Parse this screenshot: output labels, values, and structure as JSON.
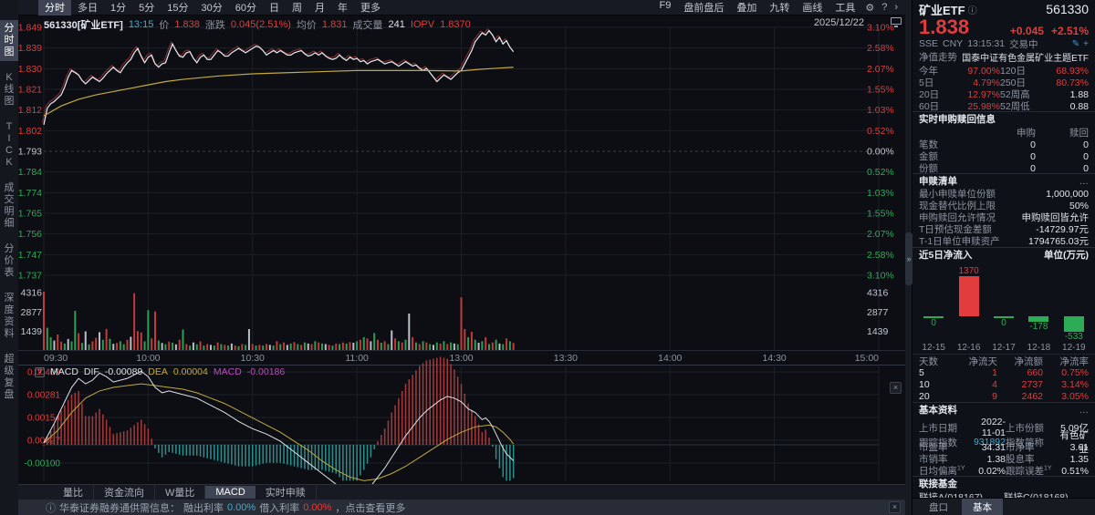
{
  "icons": {
    "gear": "⚙",
    "help": "?",
    "chevron": "›",
    "collapse": "»",
    "close": "×",
    "info": "ⓘ",
    "edit": "✎",
    "plus": "+"
  },
  "toolbar": {
    "left": [
      "分时",
      "多日",
      "1分",
      "5分",
      "15分",
      "30分",
      "60分",
      "日",
      "周",
      "月",
      "年",
      "更多"
    ],
    "active_left": "分时",
    "right": [
      "F9",
      "盘前盘后",
      "叠加",
      "九转",
      "画线",
      "工具"
    ],
    "date": "2025/12/22"
  },
  "sidebar": {
    "items": [
      "分时图",
      "K线图",
      "TICK",
      "成交明细",
      "分价表",
      "深度资料",
      "超级复盘"
    ],
    "active": "分时图"
  },
  "chart_header": {
    "symbol": "561330[矿业ETF]",
    "time": "13:15",
    "price_label": "价",
    "price": "1.838",
    "change_label": "涨跌",
    "change": "0.045(2.51%)",
    "avg_label": "均价",
    "avg": "1.831",
    "volume_label": "成交量",
    "volume": "241",
    "iopv_label": "IOPV",
    "iopv": "1.8370"
  },
  "chart_data": {
    "intraday": {
      "type": "line",
      "title": "分时",
      "prev_close": 1.793,
      "session_minutes": 240,
      "last_minute": 135,
      "x_ticks": [
        "09:30",
        "10:00",
        "10:30",
        "11:00",
        "13:00",
        "13:30",
        "14:00",
        "14:30",
        "15:00"
      ],
      "price_axis": [
        "1.849",
        "1.839",
        "1.830",
        "1.821",
        "1.812",
        "1.802",
        "1.793",
        "1.784",
        "1.774",
        "1.765",
        "1.756",
        "1.747",
        "1.737"
      ],
      "pct_axis": [
        "3.10%",
        "2.58%",
        "2.07%",
        "1.55%",
        "1.03%",
        "0.52%",
        "0.00%",
        "0.52%",
        "1.03%",
        "1.55%",
        "2.07%",
        "2.58%",
        "3.10%"
      ],
      "price_range": [
        1.737,
        1.849
      ],
      "price_points": [
        1.805,
        1.8125,
        1.8145,
        1.8155,
        1.817,
        1.8185,
        1.822,
        1.8265,
        1.8295,
        1.8285,
        1.8275,
        1.825,
        1.8235,
        1.825,
        1.8265,
        1.8255,
        1.8245,
        1.826,
        1.828,
        1.8295,
        1.831,
        1.8295,
        1.8285,
        1.831,
        1.833,
        1.8345,
        1.8375,
        1.8395,
        1.836,
        1.833,
        1.8355,
        1.8365,
        1.8325,
        1.831,
        1.8325,
        1.833,
        1.8375,
        1.8415,
        1.8385,
        1.836,
        1.8355,
        1.8375,
        1.838,
        1.835,
        1.833,
        1.8355,
        1.8365,
        1.8345,
        1.8345,
        1.8365,
        1.8385,
        1.8375,
        1.836,
        1.836,
        1.8375,
        1.8385,
        1.8395,
        1.8385,
        1.8375,
        1.8385,
        1.8395,
        1.8405,
        1.84,
        1.8385,
        1.8365,
        1.8375,
        1.8385,
        1.8375,
        1.8385,
        1.8375,
        1.8365,
        1.8365,
        1.8375,
        1.838,
        1.8385,
        1.837,
        1.836,
        1.8365,
        1.8375,
        1.8365,
        1.8375,
        1.836,
        1.835,
        1.8345,
        1.835,
        1.8365,
        1.835,
        1.834,
        1.8355,
        1.8345,
        1.835,
        1.8335,
        1.834,
        1.8325,
        1.8335,
        1.834,
        1.8345,
        1.8335,
        1.8325,
        1.833,
        1.8335,
        1.8325,
        1.8315,
        1.8325,
        1.8335,
        1.8325,
        1.8315,
        1.832,
        1.8305,
        1.8295,
        1.8305,
        1.8285,
        1.8265,
        1.8245,
        1.826,
        1.8275,
        1.8265,
        1.8255,
        1.827,
        1.8285,
        1.8295,
        1.8325,
        1.8355,
        1.8385,
        1.8425,
        1.8445,
        1.8465,
        1.8455,
        1.8475,
        1.8455,
        1.8425,
        1.8445,
        1.8415,
        1.843,
        1.84,
        1.838
      ],
      "avg_points": [
        [
          0,
          1.809
        ],
        [
          5,
          1.8135
        ],
        [
          10,
          1.8165
        ],
        [
          15,
          1.8185
        ],
        [
          20,
          1.82
        ],
        [
          25,
          1.8215
        ],
        [
          30,
          1.823
        ],
        [
          35,
          1.8245
        ],
        [
          40,
          1.8255
        ],
        [
          50,
          1.827
        ],
        [
          60,
          1.828
        ],
        [
          70,
          1.8285
        ],
        [
          80,
          1.829
        ],
        [
          90,
          1.8295
        ],
        [
          100,
          1.8295
        ],
        [
          110,
          1.8295
        ],
        [
          120,
          1.8293
        ],
        [
          125,
          1.83
        ],
        [
          130,
          1.8305
        ],
        [
          135,
          1.831
        ]
      ],
      "volume_axis": [
        "4316",
        "2877",
        "1439"
      ],
      "volume_max": 4316,
      "volumes": [
        4316,
        1650,
        950,
        700,
        1150,
        620,
        480,
        820,
        640,
        2900,
        1250,
        520,
        1380,
        420,
        640,
        900,
        1320,
        760,
        1560,
        830,
        460,
        520,
        650,
        430,
        760,
        980,
        4200,
        1400,
        1300,
        640,
        2950,
        860,
        2850,
        700,
        520,
        430,
        620,
        540,
        420,
        760,
        1520,
        440,
        330,
        560,
        420,
        640,
        330,
        440,
        380,
        330,
        560,
        440,
        380,
        330,
        480,
        330,
        280,
        440,
        380,
        1550,
        440,
        330,
        380,
        330,
        440,
        380,
        330,
        650,
        440,
        560,
        380,
        480,
        590,
        440,
        380,
        560,
        480,
        440,
        650,
        560,
        480,
        440,
        380,
        330,
        480,
        440,
        560,
        480,
        590,
        540,
        650,
        760,
        950,
        860,
        650,
        1250,
        760,
        540,
        650,
        440,
        1450,
        860,
        650,
        560,
        760,
        2700,
        950,
        560,
        440,
        650,
        560,
        440,
        380,
        560,
        480,
        650,
        440,
        560,
        480,
        430,
        3900,
        1550,
        950,
        1350,
        760,
        540,
        650,
        950,
        440,
        560,
        760,
        480,
        430,
        860,
        650,
        520
      ],
      "volume_colors": [
        "rggwrrgwgg",
        "rgwgrrwgrg",
        "wrggrwrrrg",
        "grrgwgrgwr",
        "grgwgrgrwg",
        "rgrgwrgrgw",
        "rgrgrwgrgr",
        "wgrgrgwrgr",
        "gwrgrgrgrw",
        "grgrwgrgrg",
        "wrgrgwrgrg",
        "rgwgrgrgwg",
        "rrgrgwgrgr",
        "gwgrgr"
      ]
    },
    "macd": {
      "type": "line",
      "legend": {
        "help": "?",
        "name": "MACD",
        "dif_label": "DIF",
        "dif": "-0.00089",
        "dea_label": "DEA",
        "dea": "0.00004",
        "macd_label": "MACD",
        "macd": "-0.00186"
      },
      "axis": [
        "0.00409",
        "0.00281",
        "0.00154",
        "0.00027",
        "-0.00100"
      ],
      "dif": [
        [
          0,
          0.0001
        ],
        [
          3,
          0.0012
        ],
        [
          6,
          0.0024
        ],
        [
          8,
          0.0032
        ],
        [
          10,
          0.0037
        ],
        [
          12,
          0.0034
        ],
        [
          14,
          0.0036
        ],
        [
          16,
          0.004
        ],
        [
          18,
          0.0038
        ],
        [
          20,
          0.0035
        ],
        [
          24,
          0.0037
        ],
        [
          26,
          0.0039
        ],
        [
          28,
          0.0041
        ],
        [
          30,
          0.0038
        ],
        [
          32,
          0.0032
        ],
        [
          34,
          0.0029
        ],
        [
          36,
          0.003
        ],
        [
          38,
          0.0029
        ],
        [
          40,
          0.0028
        ],
        [
          44,
          0.0026
        ],
        [
          48,
          0.0022
        ],
        [
          52,
          0.0018
        ],
        [
          56,
          0.0013
        ],
        [
          60,
          0.0009
        ],
        [
          64,
          0.0006
        ],
        [
          68,
          0.0002
        ],
        [
          72,
          -0.0004
        ],
        [
          76,
          -0.001
        ],
        [
          80,
          -0.0016
        ],
        [
          84,
          -0.0022
        ],
        [
          86,
          -0.0026
        ],
        [
          88,
          -0.0028
        ],
        [
          90,
          -0.0029
        ],
        [
          92,
          -0.0027
        ],
        [
          94,
          -0.0023
        ],
        [
          96,
          -0.0018
        ],
        [
          98,
          -0.0013
        ],
        [
          100,
          -0.0007
        ],
        [
          102,
          -0.0001
        ],
        [
          104,
          0.0005
        ],
        [
          106,
          0.001
        ],
        [
          108,
          0.0015
        ],
        [
          110,
          0.0019
        ],
        [
          112,
          0.0022
        ],
        [
          114,
          0.0025
        ],
        [
          116,
          0.0027
        ],
        [
          118,
          0.0026
        ],
        [
          120,
          0.0024
        ],
        [
          122,
          0.002
        ],
        [
          124,
          0.0018
        ],
        [
          126,
          0.0014
        ],
        [
          127,
          0.0015
        ],
        [
          128,
          0.0013
        ],
        [
          129,
          0.001
        ],
        [
          130,
          0.0006
        ],
        [
          131,
          0.0002
        ],
        [
          132,
          -0.0002
        ],
        [
          133,
          -0.0005
        ],
        [
          134,
          -0.0007
        ],
        [
          135,
          -0.00089
        ]
      ],
      "dea": [
        [
          0,
          0.0001
        ],
        [
          4,
          0.0008
        ],
        [
          8,
          0.0018
        ],
        [
          12,
          0.0026
        ],
        [
          16,
          0.003
        ],
        [
          20,
          0.0032
        ],
        [
          24,
          0.0033
        ],
        [
          28,
          0.0034
        ],
        [
          32,
          0.0033
        ],
        [
          36,
          0.0032
        ],
        [
          40,
          0.0031
        ],
        [
          44,
          0.0029
        ],
        [
          48,
          0.0026
        ],
        [
          52,
          0.0023
        ],
        [
          56,
          0.0019
        ],
        [
          60,
          0.0015
        ],
        [
          64,
          0.0011
        ],
        [
          68,
          0.0007
        ],
        [
          72,
          0.0002
        ],
        [
          76,
          -0.0003
        ],
        [
          80,
          -0.0009
        ],
        [
          84,
          -0.0014
        ],
        [
          88,
          -0.0018
        ],
        [
          92,
          -0.002
        ],
        [
          96,
          -0.0019
        ],
        [
          100,
          -0.0016
        ],
        [
          104,
          -0.0012
        ],
        [
          108,
          -0.0007
        ],
        [
          112,
          -0.0002
        ],
        [
          116,
          0.0003
        ],
        [
          120,
          0.0007
        ],
        [
          124,
          0.001
        ],
        [
          128,
          0.0011
        ],
        [
          130,
          0.001
        ],
        [
          132,
          0.0007
        ],
        [
          134,
          0.0003
        ],
        [
          135,
          4e-05
        ]
      ]
    },
    "net_inflow": {
      "type": "bar",
      "title": "近5日净流入",
      "unit": "单位(万元)",
      "categories": [
        "12-15",
        "12-16",
        "12-17",
        "12-18",
        "12-19"
      ],
      "values": [
        0,
        1370,
        0,
        -178,
        -533
      ]
    }
  },
  "bottom_tabs": {
    "items": [
      "量比",
      "资金流向",
      "W量比",
      "MACD",
      "实时申赎"
    ],
    "active": "MACD"
  },
  "bottom_bar": {
    "notice": "华泰证券融券通供需信息：",
    "out_label": "融出利率",
    "out_value": "0.00%",
    "in_label": "借入利率",
    "in_value": "0.00%",
    "more": "，点击查看更多"
  },
  "panel": {
    "title": "矿业ETF",
    "code": "561330",
    "price": "1.838",
    "change": "+0.045",
    "change_pct": "+2.51%",
    "exchange": "SSE",
    "currency": "CNY",
    "time": "13:15:31",
    "status": "交易中",
    "nav_label": "净值走势",
    "fund_name": "国泰中证有色金属矿业主题ETF",
    "perf_rows": [
      [
        "今年",
        "97.00%",
        "120日",
        "68.93%",
        "r",
        "r"
      ],
      [
        "5日",
        "4.79%",
        "250日",
        "80.73%",
        "r",
        "r"
      ],
      [
        "20日",
        "12.97%",
        "52周高",
        "1.88",
        "r",
        "w"
      ],
      [
        "60日",
        "25.98%",
        "52周低",
        "0.88",
        "r",
        "w"
      ]
    ],
    "ssr": {
      "header": "实时申购赎回信息",
      "col1": "申购",
      "col2": "赎回",
      "rows": [
        [
          "笔数",
          "0",
          "0"
        ],
        [
          "金额",
          "0",
          "0"
        ],
        [
          "份额",
          "0",
          "0"
        ]
      ]
    },
    "list": {
      "header": "申赎清单",
      "more": "…",
      "rows": [
        [
          "最小申赎单位份额",
          "1,000,000"
        ],
        [
          "现金替代比例上限",
          "50%"
        ],
        [
          "申购赎回允许情况",
          "申购赎回皆允许"
        ],
        [
          "T日预估现金差额",
          "-14729.97元"
        ],
        [
          "T-1日单位申赎资产",
          "1794765.03元"
        ]
      ]
    },
    "flow": {
      "header": "近5日净流入",
      "unit": "单位(万元)",
      "table_header": [
        "天数",
        "净流天",
        "净流额",
        "净流率"
      ],
      "table_rows": [
        [
          "5",
          "1",
          "660",
          "0.75%"
        ],
        [
          "10",
          "4",
          "2737",
          "3.14%"
        ],
        [
          "20",
          "9",
          "2462",
          "3.05%"
        ]
      ]
    },
    "basic": {
      "header": "基本资料",
      "more": "…",
      "sup_rows": [
        4
      ],
      "sup_text": "1Y",
      "rows": [
        [
          "上市日期",
          "2022-11-01",
          "上市份额",
          "5.09亿",
          "w",
          "w"
        ],
        [
          "跟踪指数",
          "931892",
          "指数简称",
          "有色矿业",
          "c",
          "w"
        ],
        [
          "市盈率",
          "34.31",
          "市净率",
          "3.61",
          "w",
          "w"
        ],
        [
          "市销率",
          "1.38",
          "股息率",
          "1.35",
          "w",
          "w"
        ],
        [
          "日均偏离",
          "0.02%",
          "跟踪误差",
          "0.51%",
          "w",
          "w"
        ]
      ]
    },
    "links": {
      "header": "联接基金",
      "items": [
        "联接A(018167)",
        "联接C(018168)"
      ]
    },
    "tabs": {
      "items": [
        "盘口",
        "基本"
      ],
      "active": "基本"
    }
  }
}
